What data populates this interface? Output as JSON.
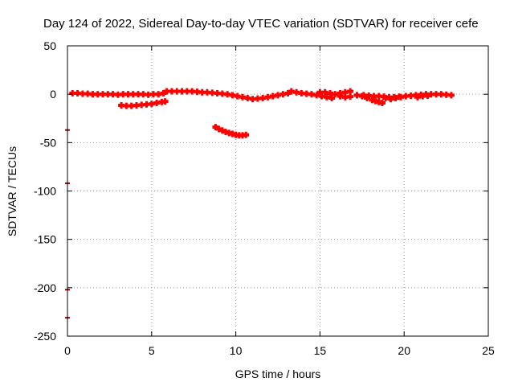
{
  "chart_data": {
    "type": "scatter",
    "title": "Day 124 of 2022, Sidereal Day-to-day VTEC variation (SDTVAR) for receiver cefe",
    "xlabel": "GPS time / hours",
    "ylabel": "SDTVAR / TECUs",
    "xlim": [
      0,
      25
    ],
    "ylim": [
      -250,
      50
    ],
    "xticks": [
      "0",
      "5",
      "10",
      "15",
      "20",
      "25"
    ],
    "yticks": [
      "50",
      "0",
      "-50",
      "-100",
      "-150",
      "-200",
      "-250"
    ],
    "grid": true,
    "legend": "none",
    "color": "#ff0000",
    "series": [
      {
        "points": [
          [
            0.3,
            1
          ],
          [
            0.6,
            1
          ],
          [
            0.9,
            0.5
          ],
          [
            1.2,
            0.5
          ],
          [
            1.5,
            0
          ],
          [
            1.8,
            0
          ],
          [
            2.1,
            0
          ],
          [
            2.4,
            0
          ],
          [
            2.7,
            0
          ],
          [
            3.0,
            -0.5
          ],
          [
            3.3,
            0
          ],
          [
            3.6,
            0
          ],
          [
            3.9,
            0
          ],
          [
            4.2,
            0
          ],
          [
            4.5,
            0
          ],
          [
            4.8,
            -0.5
          ],
          [
            5.1,
            0
          ],
          [
            5.4,
            0
          ],
          [
            5.7,
            1
          ],
          [
            5.9,
            3
          ],
          [
            6.2,
            3
          ],
          [
            6.5,
            3
          ],
          [
            6.8,
            3
          ],
          [
            7.1,
            3
          ],
          [
            7.4,
            3
          ],
          [
            7.7,
            2.5
          ],
          [
            8.0,
            2
          ],
          [
            8.3,
            2
          ],
          [
            8.6,
            1.5
          ],
          [
            8.9,
            1
          ],
          [
            9.2,
            0.5
          ],
          [
            9.5,
            0
          ],
          [
            9.8,
            -1
          ],
          [
            10.1,
            -2
          ],
          [
            10.4,
            -3
          ],
          [
            10.7,
            -4
          ],
          [
            11.0,
            -5
          ],
          [
            11.3,
            -4.5
          ],
          [
            11.6,
            -4
          ],
          [
            11.9,
            -3
          ],
          [
            12.2,
            -2
          ],
          [
            12.5,
            -1
          ],
          [
            12.8,
            0
          ],
          [
            13.1,
            1
          ],
          [
            13.3,
            3
          ],
          [
            13.6,
            2
          ],
          [
            13.9,
            1
          ],
          [
            14.2,
            0.5
          ],
          [
            14.5,
            0
          ],
          [
            14.8,
            -1
          ],
          [
            15.1,
            -2
          ],
          [
            15.4,
            -3
          ],
          [
            15.7,
            -4
          ],
          [
            15.0,
            2
          ],
          [
            15.3,
            2
          ],
          [
            15.6,
            1
          ],
          [
            15.9,
            0
          ],
          [
            16.2,
            1
          ],
          [
            16.5,
            2
          ],
          [
            16.8,
            3
          ],
          [
            16.2,
            -2
          ],
          [
            16.5,
            -3
          ],
          [
            16.8,
            -2.5
          ],
          [
            17.2,
            -1
          ],
          [
            17.5,
            -2
          ],
          [
            17.8,
            -4
          ],
          [
            18.1,
            -6
          ],
          [
            18.3,
            -7
          ],
          [
            18.5,
            -8
          ],
          [
            18.7,
            -9
          ],
          [
            17.6,
            -1
          ],
          [
            17.9,
            -1.5
          ],
          [
            18.2,
            -2
          ],
          [
            18.5,
            -2
          ],
          [
            18.8,
            -2.5
          ],
          [
            19.1,
            -3
          ],
          [
            19.4,
            -3
          ],
          [
            19.7,
            -2.5
          ],
          [
            18.9,
            -4
          ],
          [
            19.2,
            -5
          ],
          [
            19.5,
            -4
          ],
          [
            19.8,
            -3
          ],
          [
            20.1,
            -2
          ],
          [
            20.4,
            -1.5
          ],
          [
            20.7,
            -1
          ],
          [
            21.0,
            -0.5
          ],
          [
            20.8,
            -3
          ],
          [
            21.1,
            -2
          ],
          [
            21.4,
            -1.5
          ],
          [
            21.3,
            0
          ],
          [
            21.6,
            0
          ],
          [
            21.9,
            0
          ],
          [
            22.2,
            0
          ],
          [
            22.5,
            -0.5
          ],
          [
            22.8,
            -1
          ]
        ]
      },
      {
        "points": [
          [
            3.2,
            -11.5
          ],
          [
            3.5,
            -12
          ],
          [
            3.8,
            -12
          ],
          [
            4.1,
            -11.5
          ],
          [
            4.4,
            -11
          ],
          [
            4.7,
            -10.5
          ],
          [
            5.0,
            -10
          ],
          [
            5.3,
            -9
          ],
          [
            5.6,
            -8
          ],
          [
            5.8,
            -7.5
          ]
        ]
      },
      {
        "points": [
          [
            8.8,
            -34
          ],
          [
            9.0,
            -36
          ],
          [
            9.2,
            -37.5
          ],
          [
            9.4,
            -39
          ],
          [
            9.6,
            -40
          ],
          [
            9.8,
            -41
          ],
          [
            10.0,
            -42
          ],
          [
            10.2,
            -42.5
          ],
          [
            10.4,
            -42.5
          ],
          [
            10.6,
            -42
          ]
        ]
      }
    ],
    "edge_marks": [
      {
        "x": 0,
        "y": -37
      },
      {
        "x": 0,
        "y": -92
      },
      {
        "x": 0,
        "y": -202
      },
      {
        "x": 0,
        "y": -231
      }
    ]
  }
}
